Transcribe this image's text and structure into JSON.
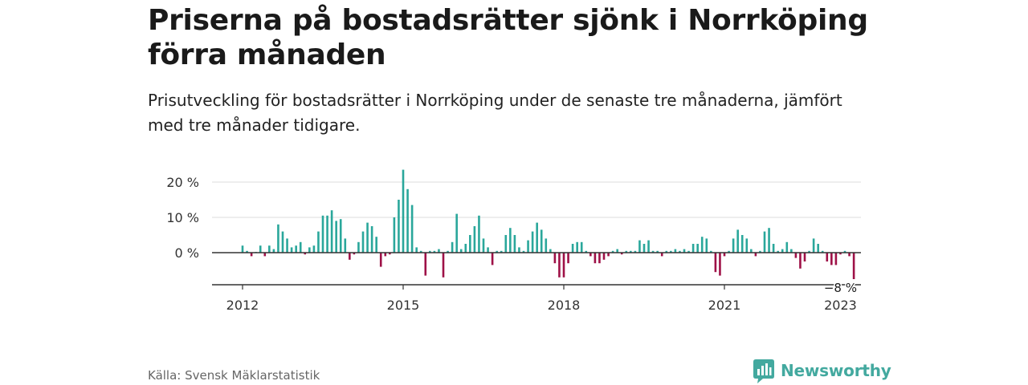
{
  "title": "Priserna på bostadsrätter sjönk i Norrköping förra månaden",
  "subtitle": "Prisutveckling för bostadsrätter i Norrköping under de senaste tre månaderna, jämfört med tre månader tidigare.",
  "source": "Källa: Svensk Mäklarstatistik",
  "logo": {
    "text": "Newsworthy",
    "icon": "chart-bubble-icon"
  },
  "colors": {
    "positive": "#2aa79b",
    "negative": "#9e1147",
    "grid": "#dddddd",
    "zero_line": "#333333"
  },
  "chart_data": {
    "type": "bar",
    "title": "",
    "xlabel": "",
    "ylabel": "",
    "x_start": "2012-01",
    "ylim": [
      -9,
      23
    ],
    "y_ticks": [
      0,
      10,
      20
    ],
    "y_tick_labels": [
      "0 %",
      "10 %",
      "20 %"
    ],
    "x_ticks": [
      "2012",
      "2015",
      "2018",
      "2021",
      "2023"
    ],
    "x_tick_positions": [
      "2012-01",
      "2015-01",
      "2018-01",
      "2021-01",
      "2023-03"
    ],
    "annotation": {
      "label": "−8 %",
      "at": "2023-03"
    },
    "grid": true,
    "values": [
      2,
      0.5,
      -1,
      0.2,
      2,
      -1,
      2,
      1,
      8,
      6,
      4,
      1.5,
      2,
      3,
      -0.5,
      1.5,
      2,
      6,
      10.5,
      10.5,
      12,
      9,
      9.5,
      4,
      -2,
      -0.5,
      3,
      6,
      8.5,
      7.5,
      4.5,
      -4,
      -1,
      -0.5,
      10,
      15,
      23.5,
      18,
      13.5,
      1.5,
      0.5,
      -6.5,
      0.5,
      0.5,
      1,
      -7,
      0.5,
      3,
      11,
      1,
      2.5,
      5,
      7.5,
      10.5,
      4,
      1.5,
      -3.5,
      0.5,
      0.5,
      5,
      7,
      5,
      1.5,
      0.5,
      3.5,
      6,
      8.5,
      6.5,
      4,
      1,
      -3,
      -7,
      -7,
      -3,
      2.5,
      3,
      3,
      0.5,
      -1,
      -3,
      -3,
      -2,
      -1,
      0.5,
      1,
      -0.5,
      0.5,
      0.5,
      0.5,
      3.5,
      2.5,
      3.5,
      0.5,
      0.5,
      -1,
      0.5,
      0.5,
      1,
      0.5,
      1,
      0.5,
      2.5,
      2.5,
      4.5,
      4,
      0.5,
      -5.5,
      -6.5,
      -1,
      0.5,
      4,
      6.5,
      5,
      4,
      1,
      -1,
      0.5,
      6,
      7,
      2.5,
      0.5,
      1,
      3,
      1,
      -1.5,
      -4.5,
      -2.5,
      0.5,
      4,
      2.5,
      0.5,
      -2.5,
      -3.5,
      -3.5,
      -0.5,
      0.5,
      -1,
      -7.5
    ]
  }
}
